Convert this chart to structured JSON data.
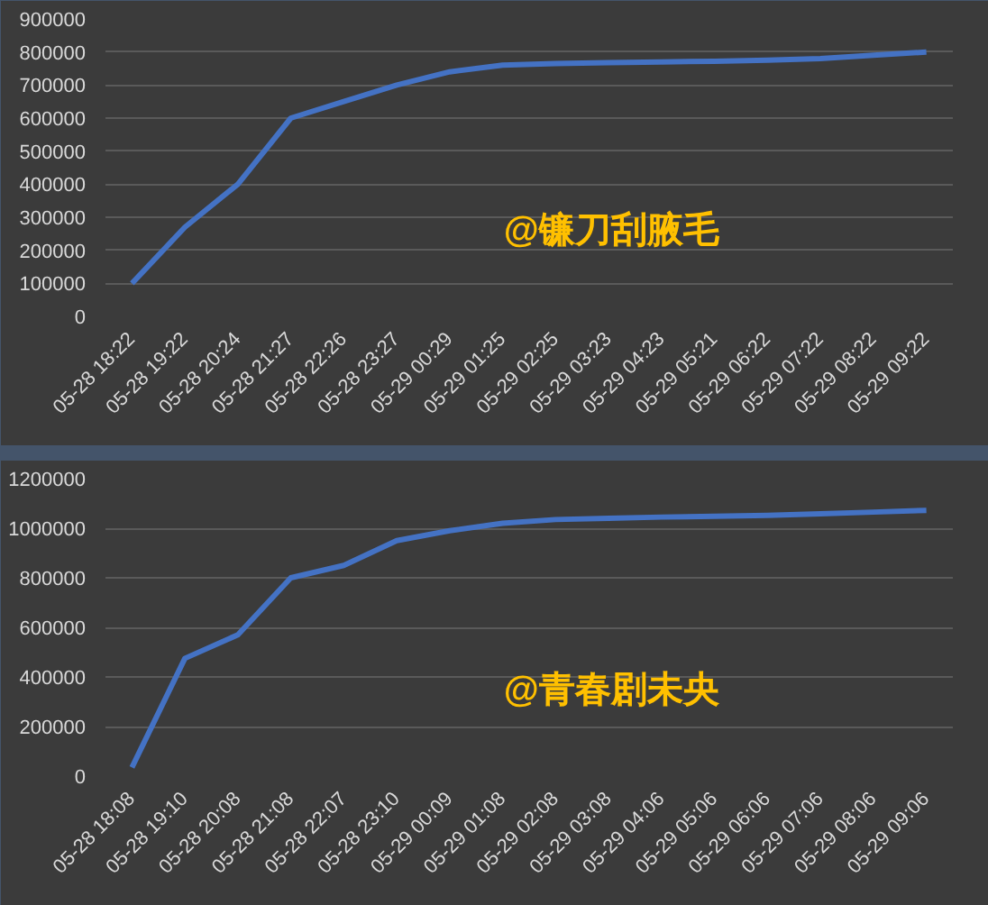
{
  "chart_data": [
    {
      "type": "line",
      "categories": [
        "05-28 18:22",
        "05-28 19:22",
        "05-28 20:24",
        "05-28 21:27",
        "05-28 22:26",
        "05-28 23:27",
        "05-29 00:29",
        "05-29 01:25",
        "05-29 02:25",
        "05-29 03:23",
        "05-29 04:23",
        "05-29 05:21",
        "05-29 06:22",
        "05-29 07:22",
        "05-29 08:22",
        "05-29 09:22"
      ],
      "series": [
        {
          "color": "#4472c4",
          "values": [
            100000,
            270000,
            400000,
            600000,
            650000,
            700000,
            740000,
            760000,
            765000,
            768000,
            770000,
            772000,
            775000,
            780000,
            790000,
            800000
          ]
        }
      ],
      "ylim": [
        0,
        900000
      ],
      "yticks": [
        0,
        100000,
        200000,
        300000,
        400000,
        500000,
        600000,
        700000,
        800000,
        900000
      ],
      "grid": "y",
      "marker": "none",
      "line_style": "solid",
      "annotations": [
        "@镰刀刮腋毛"
      ]
    },
    {
      "type": "line",
      "categories": [
        "05-28 18:08",
        "05-28 19:10",
        "05-28 20:08",
        "05-28 21:08",
        "05-28 22:07",
        "05-28 23:10",
        "05-29 00:09",
        "05-29 01:08",
        "05-29 02:08",
        "05-29 03:08",
        "05-29 04:06",
        "05-29 05:06",
        "05-29 06:06",
        "05-29 07:06",
        "05-29 08:06",
        "05-29 09:06"
      ],
      "series": [
        {
          "color": "#4472c4",
          "values": [
            35000,
            475000,
            570000,
            800000,
            850000,
            950000,
            990000,
            1020000,
            1035000,
            1040000,
            1045000,
            1048000,
            1052000,
            1058000,
            1065000,
            1072000
          ]
        }
      ],
      "ylim": [
        0,
        1200000
      ],
      "yticks": [
        0,
        200000,
        400000,
        600000,
        800000,
        1000000,
        1200000
      ],
      "grid": "y",
      "marker": "none",
      "line_style": "solid",
      "annotations": [
        "@青春剧未央"
      ]
    }
  ]
}
